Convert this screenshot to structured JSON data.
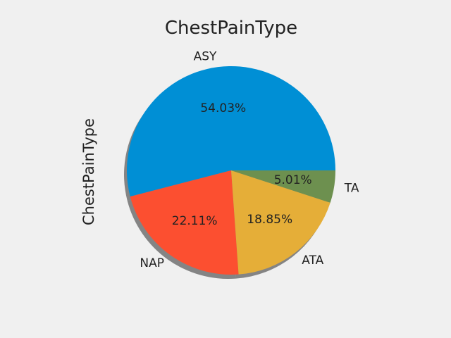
{
  "chart_data": {
    "type": "pie",
    "title": "ChestPainType",
    "ylabel": "ChestPainType",
    "start_angle_deg": 0,
    "direction": "counterclockwise",
    "shadow": true,
    "slices": [
      {
        "label": "ASY",
        "percent": 54.03,
        "percent_label": "54.03%",
        "color": "#008fd5"
      },
      {
        "label": "NAP",
        "percent": 22.11,
        "percent_label": "22.11%",
        "color": "#fc4f30"
      },
      {
        "label": "ATA",
        "percent": 18.85,
        "percent_label": "18.85%",
        "color": "#e5ae38"
      },
      {
        "label": "TA",
        "percent": 5.01,
        "percent_label": "5.01%",
        "color": "#6d904f"
      }
    ]
  }
}
